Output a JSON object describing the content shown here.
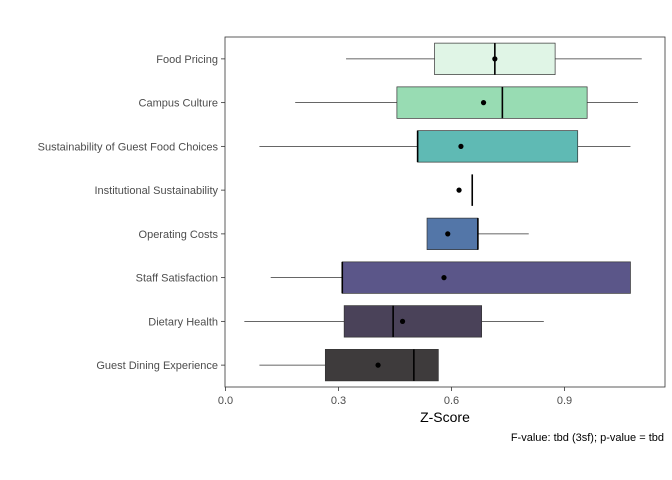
{
  "chart_data": {
    "type": "boxplot",
    "orientation": "horizontal",
    "xlabel": "Z-Score",
    "caption": "F-value: tbd (3sf); p-value = tbd",
    "xlim": [
      0,
      1.17
    ],
    "xticks": [
      0.0,
      0.3,
      0.6,
      0.9
    ],
    "xtick_labels": [
      "0.0",
      "0.3",
      "0.6",
      "0.9"
    ],
    "grid": false,
    "categories": [
      {
        "label": "Food Pricing",
        "min": 0.32,
        "q1": 0.555,
        "median": 0.715,
        "q3": 0.875,
        "max": 1.105,
        "mean": 0.715,
        "color": "#e0f5e6"
      },
      {
        "label": "Campus Culture",
        "min": 0.185,
        "q1": 0.455,
        "median": 0.735,
        "q3": 0.96,
        "max": 1.095,
        "mean": 0.685,
        "color": "#98dcb3"
      },
      {
        "label": "Sustainability of Guest Food Choices",
        "min": 0.09,
        "q1": 0.51,
        "median": 0.51,
        "q3": 0.935,
        "max": 1.075,
        "mean": 0.625,
        "color": "#5fbab4"
      },
      {
        "label": "Institutional Sustainability",
        "min": 0.655,
        "q1": 0.655,
        "median": 0.655,
        "q3": 0.655,
        "max": 0.655,
        "mean": 0.62,
        "color": "#4a8fa8"
      },
      {
        "label": "Operating Costs",
        "min": 0.535,
        "q1": 0.535,
        "median": 0.67,
        "q3": 0.67,
        "max": 0.805,
        "mean": 0.59,
        "color": "#5376a8"
      },
      {
        "label": "Staff Satisfaction",
        "min": 0.12,
        "q1": 0.31,
        "median": 0.31,
        "q3": 1.075,
        "max": 1.075,
        "mean": 0.58,
        "color": "#5b5689"
      },
      {
        "label": "Dietary Health",
        "min": 0.05,
        "q1": 0.315,
        "median": 0.445,
        "q3": 0.68,
        "max": 0.845,
        "mean": 0.47,
        "color": "#4a4259"
      },
      {
        "label": "Guest Dining Experience",
        "min": 0.09,
        "q1": 0.265,
        "median": 0.5,
        "q3": 0.565,
        "max": 0.565,
        "mean": 0.405,
        "color": "#3e3b3c"
      }
    ]
  }
}
